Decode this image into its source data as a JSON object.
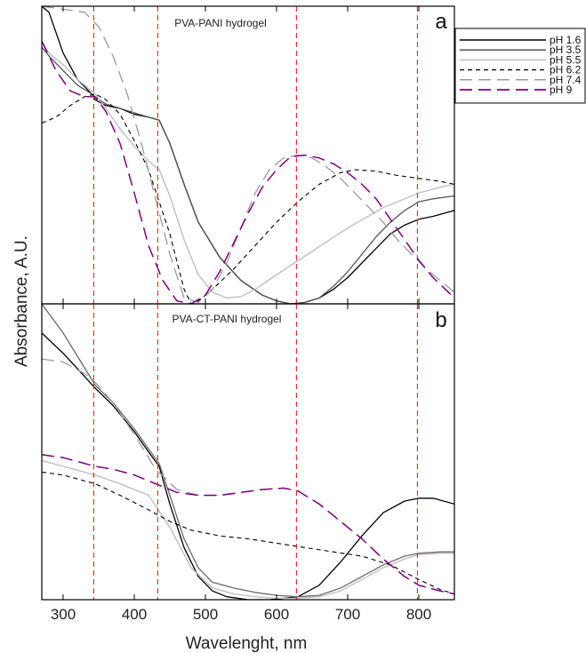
{
  "chart_data": [
    {
      "type": "line",
      "panel_letter": "a",
      "title": "PVA-PANI hydrogel",
      "xlabel": "Wavelenght, nm",
      "ylabel": "Absorbance, A.U.",
      "xlim": [
        270,
        850
      ],
      "ylim": [
        0,
        1
      ],
      "xticks": [
        300,
        400,
        500,
        600,
        700,
        800
      ],
      "reference_lines_x": [
        343,
        433,
        628,
        798
      ],
      "series": [
        {
          "name": "pH 1.6",
          "color": "#000000",
          "dash": "solid",
          "width": 1.3,
          "x": [
            270,
            280,
            300,
            320,
            340,
            345,
            360,
            380,
            400,
            420,
            435,
            450,
            470,
            490,
            520,
            550,
            580,
            600,
            620,
            640,
            660,
            680,
            700,
            720,
            740,
            760,
            780,
            800,
            820,
            850
          ],
          "y": [
            1.02,
            1.0,
            0.86,
            0.77,
            0.72,
            0.7,
            0.68,
            0.67,
            0.65,
            0.64,
            0.63,
            0.55,
            0.41,
            0.28,
            0.16,
            0.08,
            0.03,
            0.01,
            0.0,
            0.005,
            0.02,
            0.05,
            0.09,
            0.14,
            0.19,
            0.24,
            0.27,
            0.29,
            0.3,
            0.32
          ]
        },
        {
          "name": "pH 3.5",
          "color": "#555555",
          "dash": "solid",
          "width": 1.3,
          "x": [
            270,
            280,
            300,
            320,
            340,
            345,
            360,
            380,
            400,
            420,
            435,
            450,
            470,
            490,
            520,
            550,
            580,
            600,
            620,
            640,
            660,
            680,
            700,
            720,
            740,
            760,
            780,
            800,
            820,
            850
          ],
          "y": [
            0.88,
            0.85,
            0.8,
            0.75,
            0.72,
            0.71,
            0.685,
            0.67,
            0.655,
            0.64,
            0.63,
            0.55,
            0.41,
            0.28,
            0.16,
            0.08,
            0.03,
            0.01,
            0.0,
            0.005,
            0.02,
            0.06,
            0.11,
            0.17,
            0.23,
            0.28,
            0.32,
            0.35,
            0.36,
            0.37
          ]
        },
        {
          "name": "pH 5.5",
          "color": "#bcbcbc",
          "dash": "solid",
          "width": 1.3,
          "x": [
            270,
            280,
            300,
            320,
            340,
            345,
            360,
            380,
            400,
            420,
            435,
            450,
            470,
            490,
            510,
            530,
            550,
            570,
            600,
            650,
            700,
            750,
            800,
            830,
            850
          ],
          "y": [
            0.9,
            0.86,
            0.82,
            0.77,
            0.73,
            0.72,
            0.67,
            0.6,
            0.54,
            0.49,
            0.46,
            0.37,
            0.22,
            0.1,
            0.04,
            0.02,
            0.025,
            0.05,
            0.1,
            0.18,
            0.26,
            0.33,
            0.38,
            0.4,
            0.41
          ]
        },
        {
          "name": "pH 6.2",
          "color": "#000000",
          "dash": "5,4",
          "width": 1.1,
          "x": [
            270,
            290,
            310,
            330,
            345,
            360,
            380,
            400,
            420,
            435,
            450,
            470,
            480,
            490,
            510,
            540,
            570,
            600,
            630,
            660,
            690,
            710,
            740,
            770,
            800,
            830,
            850
          ],
          "y": [
            0.62,
            0.64,
            0.68,
            0.71,
            0.72,
            0.7,
            0.65,
            0.56,
            0.46,
            0.35,
            0.24,
            0.05,
            0.0,
            0.01,
            0.05,
            0.12,
            0.2,
            0.28,
            0.35,
            0.41,
            0.45,
            0.46,
            0.455,
            0.44,
            0.43,
            0.42,
            0.41
          ]
        },
        {
          "name": "pH 7.4",
          "color": "#9a9a9a",
          "dash": "14,7",
          "width": 1.3,
          "x": [
            270,
            300,
            330,
            350,
            370,
            390,
            410,
            430,
            450,
            470,
            490,
            510,
            530,
            550,
            570,
            590,
            610,
            630,
            650,
            670,
            690,
            710,
            730,
            750,
            770,
            790,
            810,
            830,
            850
          ],
          "y": [
            1.02,
            1.01,
            1.0,
            0.95,
            0.85,
            0.72,
            0.55,
            0.36,
            0.17,
            0.02,
            0.005,
            0.05,
            0.14,
            0.26,
            0.38,
            0.46,
            0.5,
            0.51,
            0.5,
            0.47,
            0.43,
            0.38,
            0.33,
            0.28,
            0.22,
            0.17,
            0.12,
            0.08,
            0.04
          ]
        },
        {
          "name": "pH 9",
          "color": "#800080",
          "dash": "14,7",
          "width": 1.5,
          "x": [
            270,
            290,
            310,
            330,
            345,
            360,
            380,
            400,
            420,
            440,
            460,
            480,
            500,
            520,
            540,
            560,
            580,
            600,
            620,
            640,
            660,
            680,
            700,
            720,
            740,
            760,
            780,
            800,
            820,
            850
          ],
          "y": [
            0.9,
            0.8,
            0.73,
            0.71,
            0.71,
            0.66,
            0.55,
            0.38,
            0.2,
            0.08,
            0.01,
            0.0,
            0.03,
            0.11,
            0.21,
            0.31,
            0.4,
            0.46,
            0.505,
            0.51,
            0.5,
            0.48,
            0.45,
            0.41,
            0.36,
            0.29,
            0.22,
            0.15,
            0.09,
            0.02
          ]
        }
      ]
    },
    {
      "type": "line",
      "panel_letter": "b",
      "title": "PVA-CT-PANI hydrogel",
      "xlabel": "Wavelenght, nm",
      "ylabel": "Absorbance, A.U.",
      "xlim": [
        270,
        850
      ],
      "ylim": [
        0,
        1
      ],
      "xticks": [
        300,
        400,
        500,
        600,
        700,
        800
      ],
      "reference_lines_x": [
        343,
        433,
        628,
        798
      ],
      "series": [
        {
          "name": "pH 1.6",
          "color": "#000000",
          "dash": "solid",
          "width": 1.3,
          "x": [
            270,
            300,
            330,
            345,
            370,
            400,
            420,
            435,
            450,
            470,
            490,
            510,
            530,
            560,
            590,
            610,
            630,
            660,
            690,
            720,
            750,
            780,
            800,
            820,
            850
          ],
          "y": [
            0.92,
            0.85,
            0.77,
            0.73,
            0.67,
            0.58,
            0.51,
            0.46,
            0.33,
            0.18,
            0.08,
            0.03,
            0.01,
            0.0,
            0.0,
            0.005,
            0.01,
            0.05,
            0.13,
            0.22,
            0.3,
            0.34,
            0.35,
            0.35,
            0.33
          ]
        },
        {
          "name": "pH 3.5",
          "color": "#6a6a6a",
          "dash": "solid",
          "width": 1.3,
          "x": [
            270,
            300,
            330,
            345,
            370,
            400,
            420,
            435,
            450,
            470,
            490,
            510,
            540,
            570,
            600,
            630,
            660,
            690,
            720,
            750,
            780,
            800,
            830,
            850
          ],
          "y": [
            1.02,
            0.92,
            0.8,
            0.74,
            0.68,
            0.59,
            0.52,
            0.47,
            0.36,
            0.21,
            0.11,
            0.06,
            0.04,
            0.025,
            0.015,
            0.01,
            0.015,
            0.04,
            0.08,
            0.12,
            0.15,
            0.16,
            0.165,
            0.165
          ]
        },
        {
          "name": "pH 5.5",
          "color": "#bcbcbc",
          "dash": "solid",
          "width": 1.3,
          "x": [
            270,
            300,
            345,
            380,
            420,
            450,
            480,
            510,
            540,
            570,
            600,
            630,
            660,
            690,
            720,
            750,
            780,
            800,
            830,
            850
          ],
          "y": [
            0.48,
            0.46,
            0.43,
            0.4,
            0.36,
            0.25,
            0.11,
            0.04,
            0.02,
            0.01,
            0.005,
            0.005,
            0.01,
            0.03,
            0.07,
            0.11,
            0.14,
            0.155,
            0.16,
            0.16
          ]
        },
        {
          "name": "pH 6.2",
          "color": "#000000",
          "dash": "5,4",
          "width": 1.1,
          "x": [
            270,
            300,
            345,
            380,
            420,
            450,
            480,
            520,
            560,
            600,
            640,
            680,
            720,
            760,
            800,
            830,
            850
          ],
          "y": [
            0.44,
            0.43,
            0.4,
            0.36,
            0.31,
            0.27,
            0.24,
            0.22,
            0.21,
            0.195,
            0.18,
            0.165,
            0.15,
            0.12,
            0.07,
            0.035,
            0.02
          ]
        },
        {
          "name": "pH 7.4",
          "color": "#9a9a9a",
          "dash": "14,7",
          "width": 1.3,
          "x": [
            270,
            300,
            330,
            345,
            370,
            400,
            430,
            460,
            490,
            520,
            550,
            580,
            610,
            630,
            660,
            690,
            720,
            750,
            780,
            800,
            830,
            850
          ],
          "y": [
            0.83,
            0.82,
            0.78,
            0.75,
            0.68,
            0.57,
            0.45,
            0.38,
            0.36,
            0.36,
            0.37,
            0.38,
            0.385,
            0.375,
            0.33,
            0.27,
            0.21,
            0.14,
            0.08,
            0.05,
            0.03,
            0.02
          ]
        },
        {
          "name": "pH 9",
          "color": "#800080",
          "dash": "14,7",
          "width": 1.5,
          "x": [
            270,
            300,
            330,
            345,
            370,
            400,
            430,
            460,
            490,
            520,
            550,
            580,
            610,
            630,
            660,
            690,
            720,
            750,
            780,
            800,
            830,
            850
          ],
          "y": [
            0.5,
            0.49,
            0.47,
            0.46,
            0.45,
            0.43,
            0.4,
            0.37,
            0.36,
            0.36,
            0.37,
            0.38,
            0.385,
            0.375,
            0.33,
            0.27,
            0.21,
            0.14,
            0.08,
            0.05,
            0.03,
            0.02
          ]
        }
      ]
    }
  ]
}
